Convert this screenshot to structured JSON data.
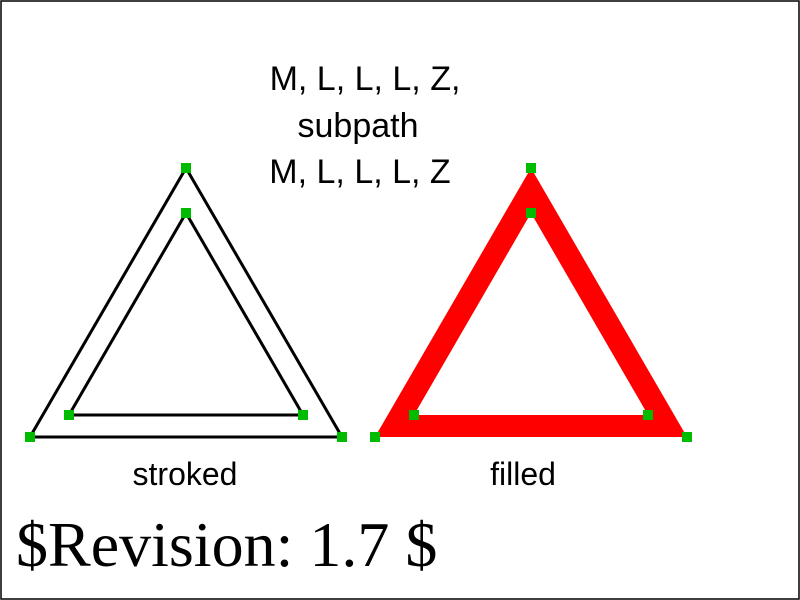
{
  "caption": {
    "line1": "M, L, L, L, Z,",
    "line2": "subpath",
    "line3": "M, L, L, L, Z"
  },
  "stroked": {
    "label": "stroked",
    "stroke_color": "#000000"
  },
  "filled": {
    "label": "filled",
    "fill_color": "#ff0000"
  },
  "revision": {
    "text": "$Revision: 1.7 $"
  },
  "colors": {
    "background": "#ffffff",
    "frame": "#000000",
    "vertex_marker": "#00bb00"
  }
}
